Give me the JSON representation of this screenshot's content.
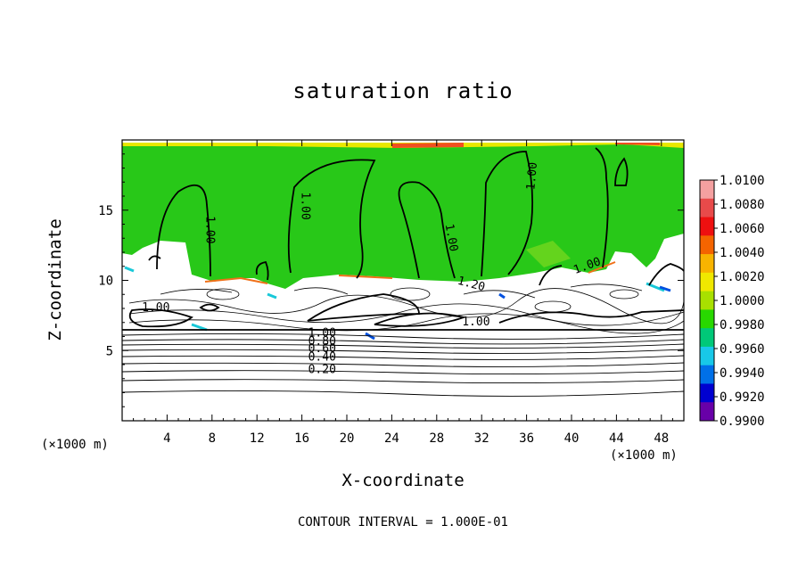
{
  "chart_data": {
    "type": "heatmap",
    "title": "saturation ratio",
    "xlabel": "X-coordinate",
    "ylabel": "Z-coordinate",
    "x_unit": "(×1000 m)",
    "xlim": [
      0,
      50
    ],
    "ylim": [
      0,
      20
    ],
    "x_ticks": [
      4,
      8,
      12,
      16,
      20,
      24,
      28,
      32,
      36,
      40,
      44,
      48
    ],
    "y_ticks": [
      5,
      10,
      15
    ],
    "colorbar": {
      "ticks": [
        "1.0100",
        "1.0080",
        "1.0060",
        "1.0040",
        "1.0020",
        "1.0000",
        "0.9980",
        "0.9960",
        "0.9940",
        "0.9920",
        "0.9900"
      ],
      "colors": [
        "#f4a0a0",
        "#e84a4a",
        "#ee1010",
        "#f46400",
        "#f8b400",
        "#f0e800",
        "#a8e000",
        "#28d800",
        "#00c878",
        "#18c8e8",
        "#0070e8",
        "#0000d0",
        "#6800a8"
      ]
    },
    "contour_labels": [
      "1.00",
      "1.00",
      "1.00",
      "1.00",
      "1.00",
      "1.00",
      "1.20",
      "1.00",
      "1.00",
      "0.80",
      "0.60",
      "0.40",
      "0.20"
    ],
    "contour_interval": "CONTOUR INTERVAL = 1.000E-01"
  }
}
